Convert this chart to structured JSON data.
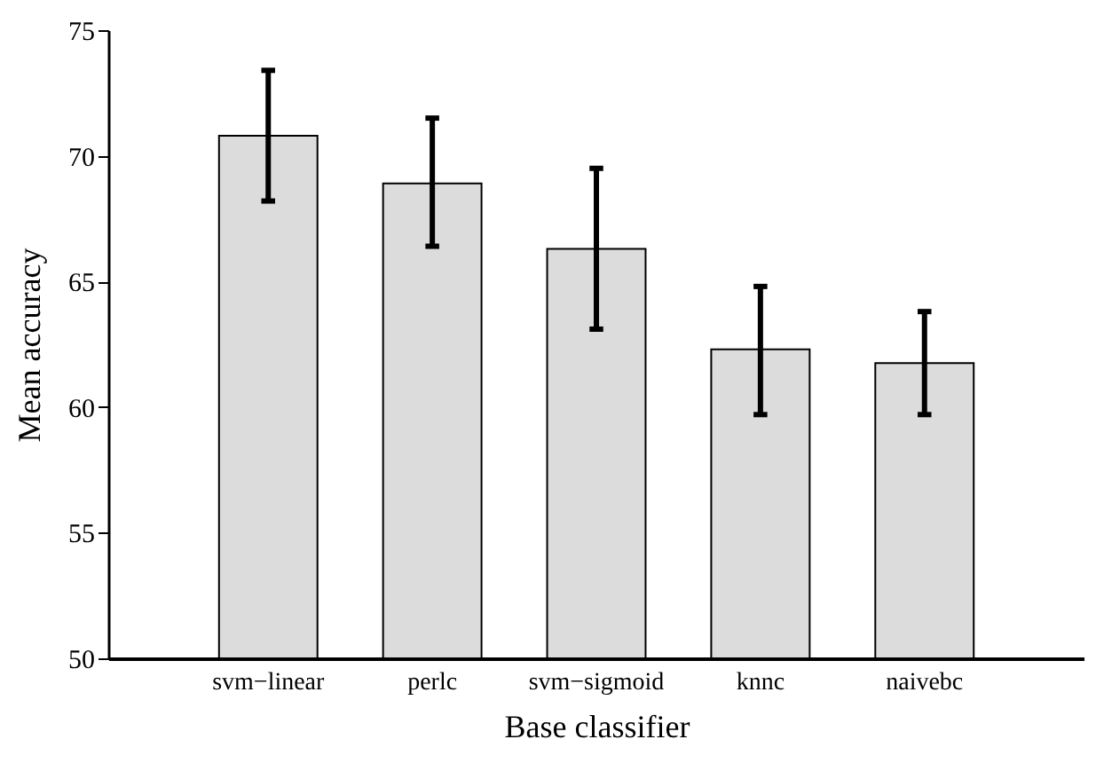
{
  "chart_data": {
    "type": "bar",
    "xlabel": "Base classifier",
    "ylabel": "Mean accuracy",
    "categories": [
      "svm−linear",
      "perlc",
      "svm−sigmoid",
      "knnc",
      "naivebc"
    ],
    "values": [
      70.8,
      68.9,
      66.3,
      62.3,
      61.75
    ],
    "errors": [
      [
        68.2,
        73.4
      ],
      [
        66.4,
        71.5
      ],
      [
        63.1,
        69.5
      ],
      [
        59.7,
        64.8
      ],
      [
        59.7,
        63.8
      ]
    ],
    "color": "#dcdcdc",
    "ylim": [
      50,
      75
    ],
    "yticks": [
      50,
      55,
      60,
      65,
      70,
      75
    ],
    "grid": false
  }
}
